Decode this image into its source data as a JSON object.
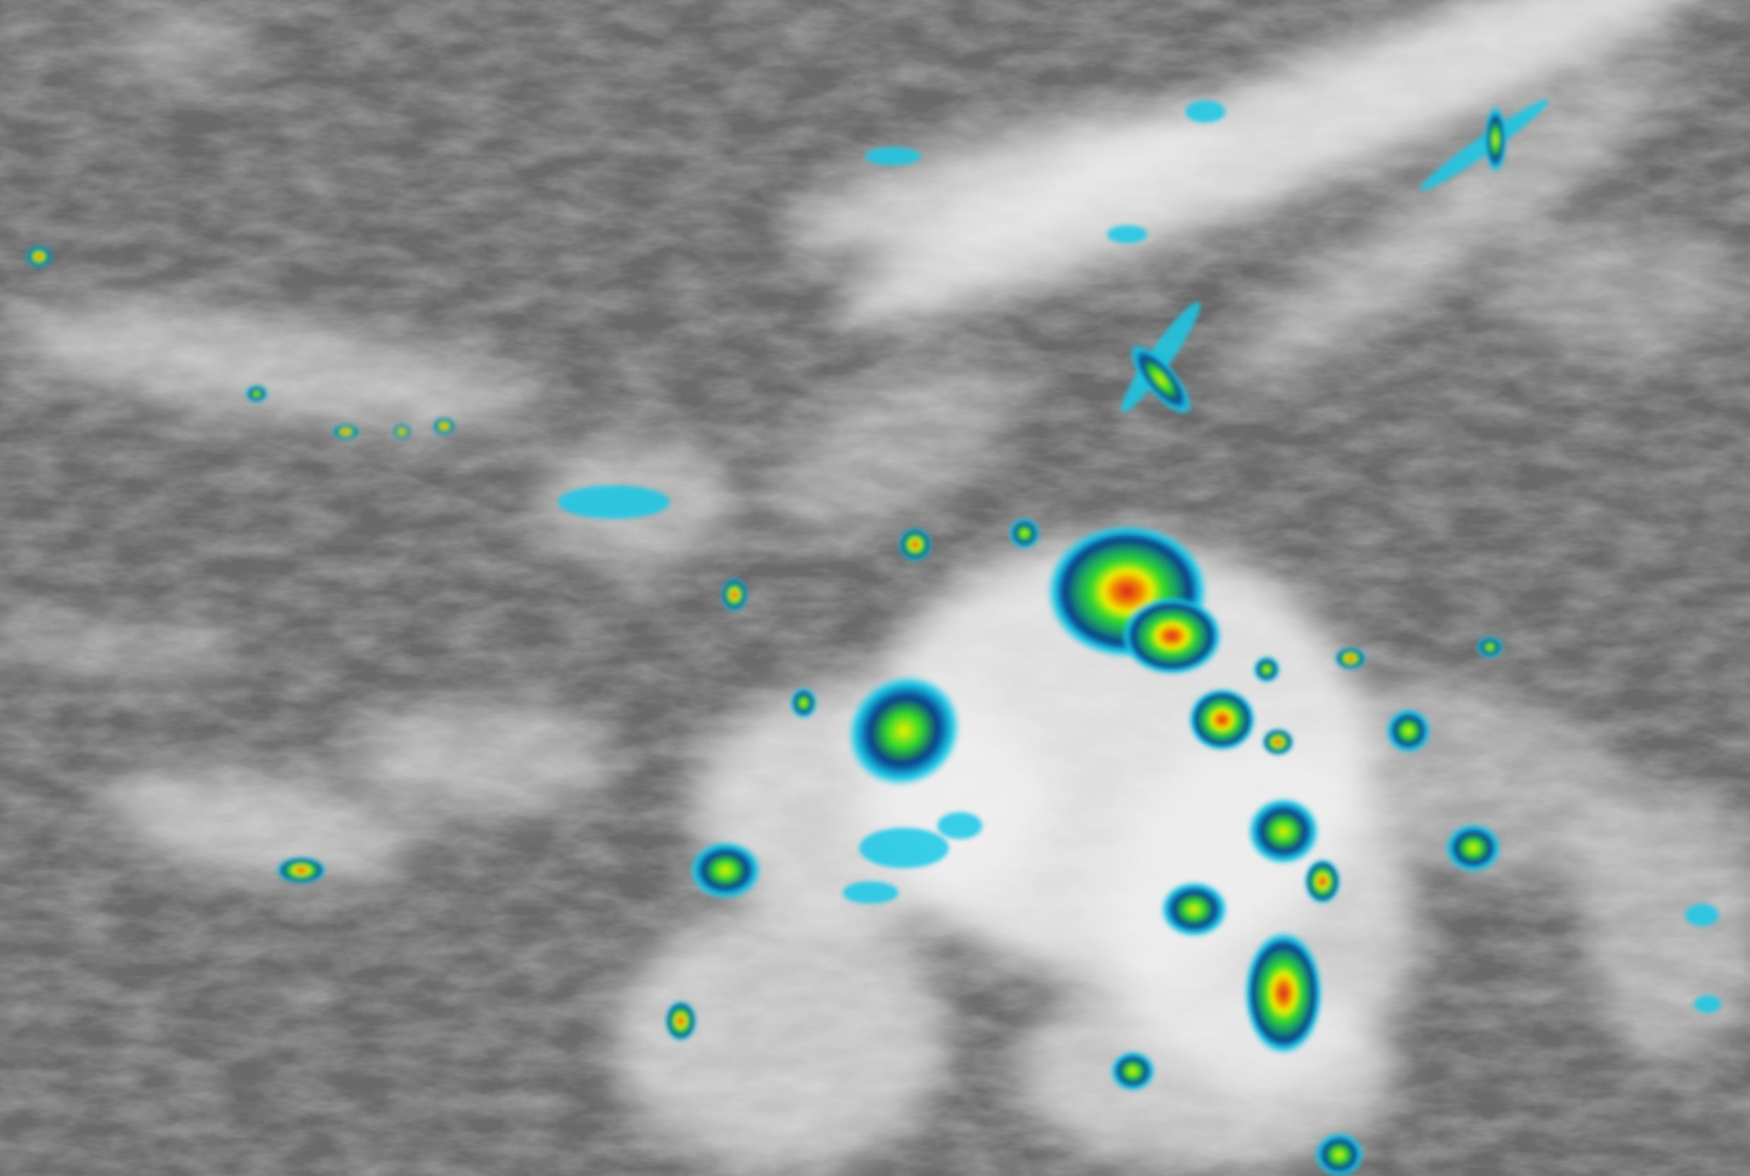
{
  "image": {
    "kind": "infrared satellite imagery",
    "colors": {
      "background": "#6a6a6a",
      "cloud": "#f2f2f2",
      "cold_cyan": "#19c8e6",
      "deep_blue": "#0a3c8c",
      "green": "#32dc28",
      "yellow": "#f0f000",
      "orange": "#f08c00",
      "red": "#dc1e1e"
    }
  }
}
